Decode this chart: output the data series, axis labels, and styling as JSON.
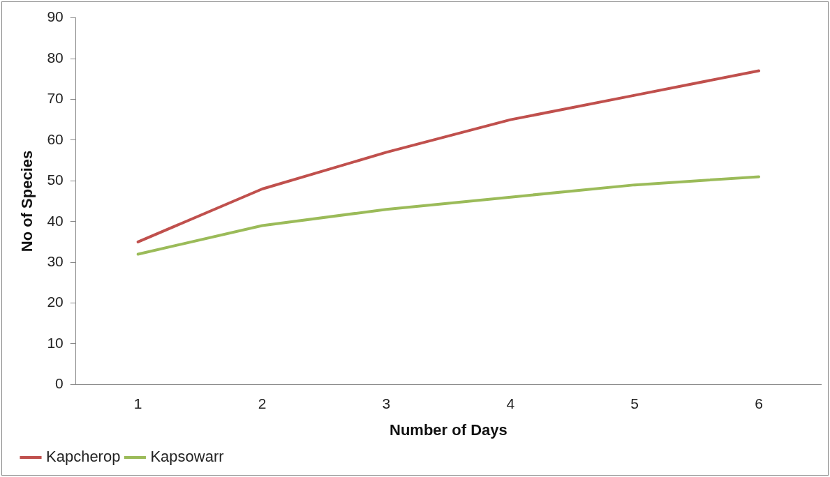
{
  "chart_data": {
    "type": "line",
    "xlabel": "Number of Days",
    "ylabel": "No of Species",
    "categories": [
      "1",
      "2",
      "3",
      "4",
      "5",
      "6"
    ],
    "series": [
      {
        "name": "Kapcherop",
        "color": "#c0504d",
        "values": [
          35,
          48,
          57,
          65,
          71,
          77
        ]
      },
      {
        "name": "Kapsowarr",
        "color": "#9bbb59",
        "values": [
          32,
          39,
          43,
          46,
          49,
          51
        ]
      }
    ],
    "ylim": [
      0,
      90
    ],
    "yticks": [
      0,
      10,
      20,
      30,
      40,
      50,
      60,
      70,
      80,
      90
    ],
    "grid": false,
    "legend": "bottom left",
    "marker": "none",
    "line_style": "solid"
  }
}
